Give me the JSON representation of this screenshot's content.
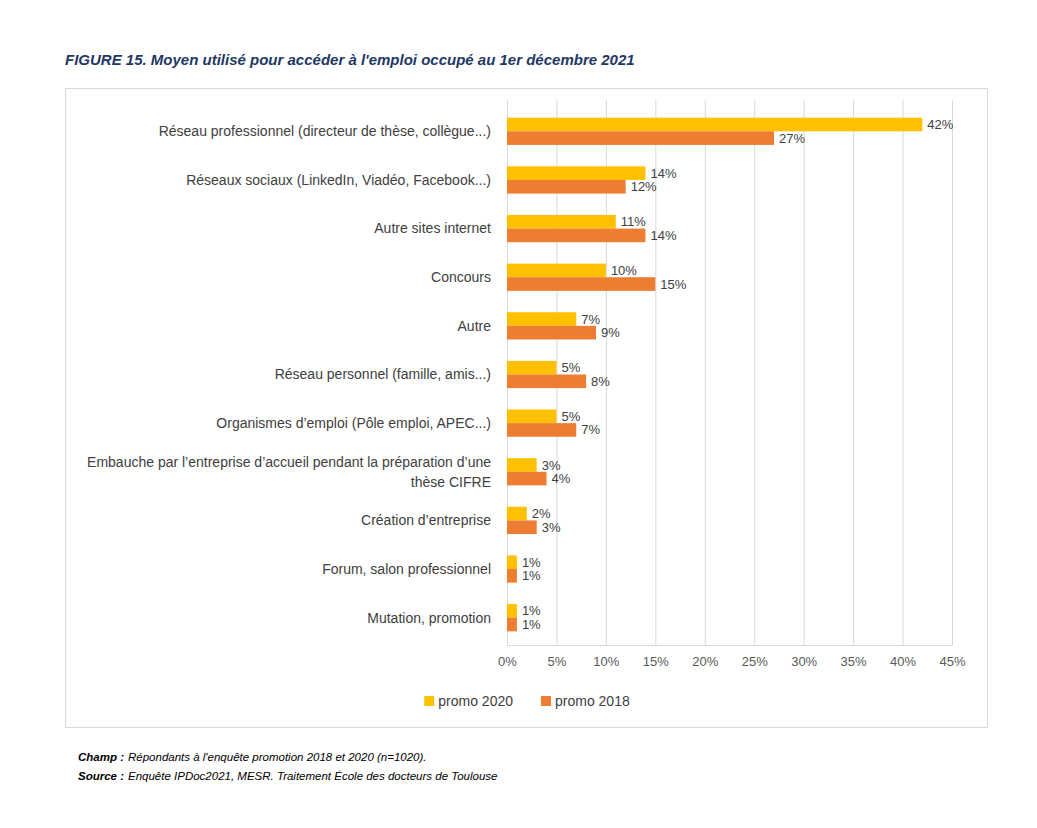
{
  "chart_data": {
    "type": "bar",
    "title": "FIGURE 15. Moyen utilisé pour accéder à l'emploi occupé au 1er décembre 2021",
    "orientation": "horizontal",
    "grid": true,
    "legend": "bottom",
    "data_labels": true,
    "categories": [
      "Réseau professionnel (directeur de thèse, collègue...)",
      "Réseaux sociaux (LinkedIn, Viadéo, Facebook...)",
      "Autre sites internet",
      "Concours",
      "Autre",
      "Réseau personnel (famille, amis...)",
      "Organismes d’emploi (Pôle emploi, APEC...)",
      "Embauche par l’entreprise d’accueil pendant la préparation d’une thèse CIFRE",
      "Création d’entreprise",
      "Forum, salon professionnel",
      "Mutation, promotion"
    ],
    "series": [
      {
        "name": "promo 2020",
        "color": "#FFC000",
        "values": [
          42,
          14,
          11,
          10,
          7,
          5,
          5,
          3,
          2,
          1,
          1
        ],
        "value_labels": [
          "42%",
          "14%",
          "11%",
          "10%",
          "7%",
          "5%",
          "5%",
          "3%",
          "2%",
          "1%",
          "1%"
        ]
      },
      {
        "name": "promo 2018",
        "color": "#ED7D31",
        "values": [
          27,
          12,
          14,
          15,
          9,
          8,
          7,
          4,
          3,
          1,
          1
        ],
        "value_labels": [
          "27%",
          "12%",
          "14%",
          "15%",
          "9%",
          "8%",
          "7%",
          "4%",
          "3%",
          "1%",
          "1%"
        ]
      }
    ],
    "xlim": [
      0,
      45
    ],
    "xticks": [
      {
        "value": 0,
        "label": "0%"
      },
      {
        "value": 5,
        "label": "5%"
      },
      {
        "value": 10,
        "label": "10%"
      },
      {
        "value": 15,
        "label": "15%"
      },
      {
        "value": 20,
        "label": "20%"
      },
      {
        "value": 25,
        "label": "25%"
      },
      {
        "value": 30,
        "label": "30%"
      },
      {
        "value": 35,
        "label": "35%"
      },
      {
        "value": 40,
        "label": "40%"
      },
      {
        "value": 45,
        "label": "45%"
      }
    ],
    "notes": [
      {
        "label": "Champ :",
        "text": "Répondants à l'enquête promotion 2018 et 2020 (n=1020)."
      },
      {
        "label": "Source :",
        "text": "Enquête IPDoc2021, MESR. Traitement École des docteurs de Toulouse"
      }
    ]
  }
}
